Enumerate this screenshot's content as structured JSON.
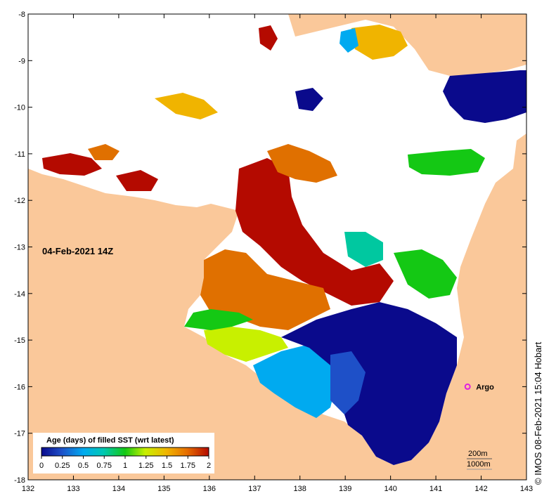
{
  "map": {
    "date_label": "04-Feb-2021 14Z",
    "credit": "©  IMOS 08-Feb-2021 15:04 Hobart",
    "argo_label": "Argo",
    "depth_200": "200m",
    "depth_1000": "1000m",
    "x_ticks": [
      "132",
      "133",
      "134",
      "135",
      "136",
      "137",
      "138",
      "139",
      "140",
      "141",
      "142",
      "143"
    ],
    "y_ticks": [
      "-8",
      "-9",
      "-10",
      "-11",
      "-12",
      "-13",
      "-14",
      "-15",
      "-16",
      "-17",
      "-18"
    ],
    "lon_range": [
      132,
      143
    ],
    "lat_range": [
      -18,
      -8
    ],
    "argo_position": {
      "lon": 141.7,
      "lat": -16.0
    },
    "colors": {
      "land": "#fac89a",
      "ocean_no_data": "#ffffff",
      "argo": "#e020e0"
    }
  },
  "legend": {
    "title": "Age (days) of filled SST (wrt latest)",
    "tick_labels": [
      "0",
      "0.25",
      "0.5",
      "0.75",
      "1",
      "1.25",
      "1.5",
      "1.75",
      "2"
    ],
    "colors": [
      "#0a0a8c",
      "#1e64d2",
      "#00b4e6",
      "#00c8a0",
      "#14c814",
      "#c8f000",
      "#f0c800",
      "#e67800",
      "#b40a00"
    ]
  }
}
